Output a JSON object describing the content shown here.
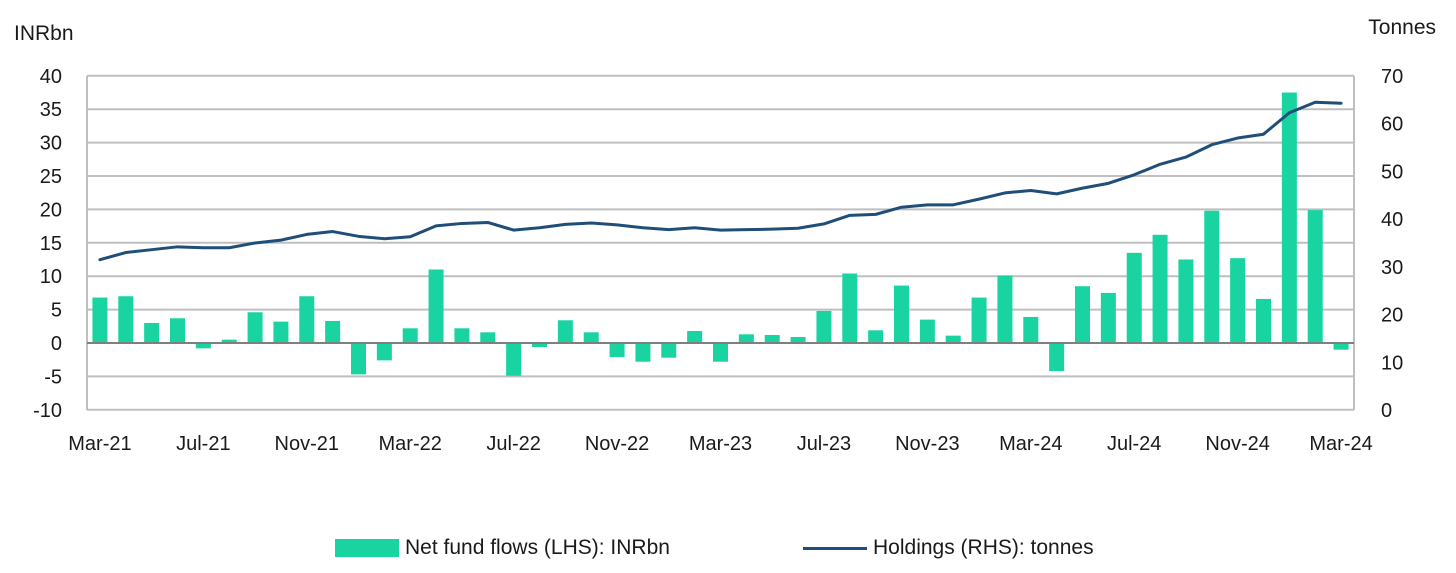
{
  "colors": {
    "bar": "#19d4a0",
    "line": "#1f4e79",
    "grid": "#bfbfbf",
    "axis": "#7f7f7f"
  },
  "chart_data": {
    "type": "bar+line",
    "left_unit": "INRbn",
    "right_unit": "Tonnes",
    "y_left_lim": [
      -10,
      40
    ],
    "y_left_ticks": [
      "-10",
      "-5",
      "0",
      "5",
      "10",
      "15",
      "20",
      "25",
      "30",
      "35",
      "40"
    ],
    "y_right_lim": [
      0,
      70
    ],
    "y_right_ticks": [
      "0",
      "10",
      "20",
      "30",
      "40",
      "50",
      "60",
      "70"
    ],
    "x_tick_labels": [
      "Mar-21",
      "Jul-21",
      "Nov-21",
      "Mar-22",
      "Jul-22",
      "Nov-22",
      "Mar-23",
      "Jul-23",
      "Nov-23",
      "Mar-24",
      "Jul-24",
      "Nov-24",
      "Mar-24"
    ],
    "grid": true,
    "legend_position": "bottom",
    "series": [
      {
        "name": "Net fund flows (LHS): INRbn",
        "kind": "bar",
        "axis": "left",
        "values": [
          6.8,
          7.0,
          3.0,
          3.7,
          -0.8,
          0.5,
          4.6,
          3.2,
          7.0,
          3.3,
          -4.7,
          -2.6,
          2.2,
          11.0,
          2.2,
          1.6,
          -4.9,
          -0.6,
          3.4,
          1.6,
          -2.1,
          -2.8,
          -2.2,
          1.8,
          -2.8,
          1.3,
          1.2,
          0.9,
          4.8,
          10.4,
          1.9,
          8.6,
          3.5,
          1.1,
          6.8,
          10.1,
          3.9,
          -4.2,
          8.5,
          7.5,
          13.5,
          16.2,
          12.5,
          19.8,
          12.7,
          6.6,
          37.5,
          19.9,
          -1.0
        ]
      },
      {
        "name": "Holdings (RHS): tonnes",
        "kind": "line",
        "axis": "right",
        "values": [
          31.5,
          33.0,
          33.6,
          34.2,
          34.0,
          34.0,
          35.0,
          35.6,
          36.8,
          37.4,
          36.4,
          35.9,
          36.3,
          38.6,
          39.1,
          39.3,
          37.7,
          38.2,
          38.9,
          39.2,
          38.8,
          38.2,
          37.8,
          38.2,
          37.7,
          37.8,
          37.9,
          38.1,
          39.0,
          40.8,
          41.0,
          42.5,
          43.0,
          43.0,
          44.2,
          45.5,
          46.0,
          45.3,
          46.5,
          47.5,
          49.3,
          51.5,
          53.0,
          55.6,
          57.0,
          57.8,
          62.3,
          64.5,
          64.3
        ]
      }
    ]
  }
}
